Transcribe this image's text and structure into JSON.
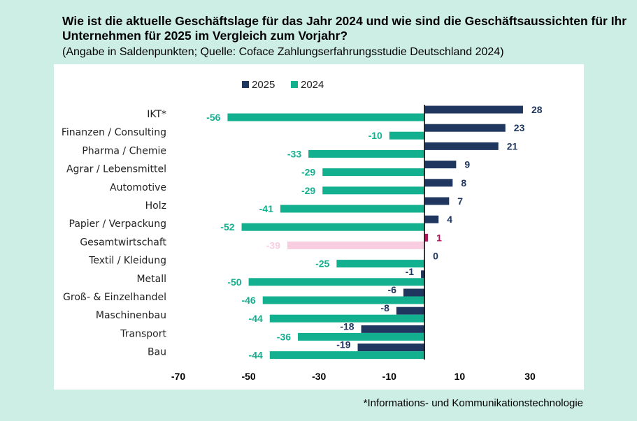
{
  "header": {
    "title": "Wie ist die aktuelle Geschäftslage für das Jahr 2024 und wie sind die Geschäftsaussichten für Ihr Unternehmen für 2025 im Vergleich zum Vorjahr?",
    "subtitle": "(Angabe in Saldenpunkten; Quelle: Coface Zahlungserfahrungsstudie Deutschland 2024)"
  },
  "footnote": "*Informations- und Kommunikationstechnologie",
  "chart_data": {
    "type": "bar",
    "orientation": "horizontal",
    "categories": [
      "IKT*",
      "Finanzen / Consulting",
      "Pharma / Chemie",
      "Agrar / Lebensmittel",
      "Automotive",
      "Holz",
      "Papier / Verpackung",
      "Gesamtwirtschaft",
      "Textil / Kleidung",
      "Metall",
      "Groß- & Einzelhandel",
      "Maschinenbau",
      "Transport",
      "Bau"
    ],
    "series": [
      {
        "name": "2025",
        "color": "#1f365f",
        "values": [
          28,
          23,
          21,
          9,
          8,
          7,
          4,
          1,
          0,
          -1,
          -6,
          -8,
          -18,
          -19
        ]
      },
      {
        "name": "2024",
        "color": "#13b08f",
        "values": [
          -56,
          -10,
          -33,
          -29,
          -29,
          -41,
          -52,
          -39,
          -25,
          -50,
          -46,
          -44,
          -36,
          -44
        ]
      }
    ],
    "highlight": {
      "category": "Gesamtwirtschaft",
      "colors": {
        "2025": "#b3135a",
        "2024": "#f8cde0"
      }
    },
    "xlim": [
      -70,
      30
    ],
    "xticks": [
      -70,
      -50,
      -30,
      -10,
      10,
      30
    ],
    "legend": "top",
    "grid": false
  }
}
